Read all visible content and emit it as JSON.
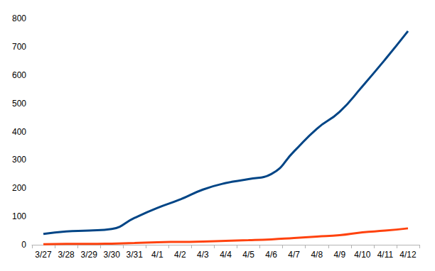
{
  "chart_data": {
    "type": "line",
    "categories": [
      "3/27",
      "3/28",
      "3/29",
      "3/30",
      "3/31",
      "4/1",
      "4/2",
      "4/3",
      "4/4",
      "4/5",
      "4/6",
      "4/7",
      "4/8",
      "4/9",
      "4/10",
      "4/11",
      "4/12"
    ],
    "series": [
      {
        "color": "#004586",
        "values": [
          38,
          47,
          50,
          56,
          95,
          130,
          160,
          195,
          218,
          232,
          250,
          330,
          410,
          470,
          560,
          655,
          755
        ]
      },
      {
        "color": "#ff420e",
        "values": [
          2,
          3,
          3,
          4,
          6,
          9,
          10,
          11,
          14,
          16,
          19,
          24,
          29,
          34,
          44,
          50,
          58
        ]
      }
    ],
    "ylim": [
      0,
      800
    ],
    "yticks": [
      0,
      100,
      200,
      300,
      400,
      500,
      600,
      700,
      800
    ],
    "grid": false
  }
}
